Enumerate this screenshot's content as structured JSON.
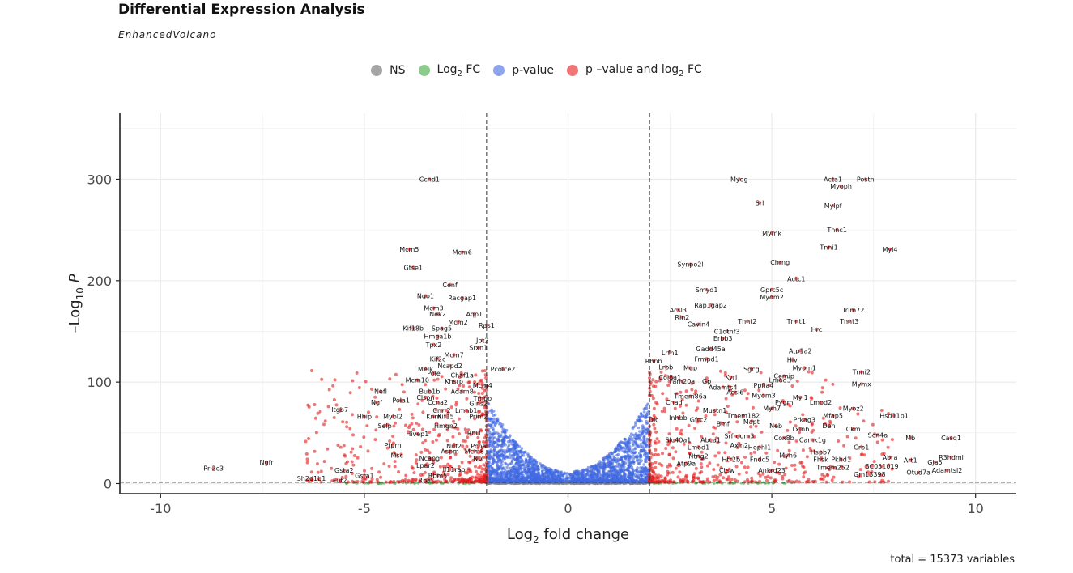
{
  "chart_data": {
    "type": "scatter",
    "title": "Differential Expression Analysis",
    "subtitle": "EnhancedVolcano",
    "xlabel": "Log2 fold change",
    "ylabel": "-Log10 P",
    "xlim": [
      -11,
      11
    ],
    "ylim": [
      -10,
      365
    ],
    "x_ticks": [
      -10,
      -5,
      0,
      5,
      10
    ],
    "y_ticks": [
      0,
      100,
      200,
      300
    ],
    "x_tick_labels": [
      "-10",
      "-5",
      "0",
      "5",
      "10"
    ],
    "y_tick_labels": [
      "0",
      "100",
      "200",
      "300"
    ],
    "fc_cutoff": [
      -2,
      2
    ],
    "p_cutoff_y": 1.3,
    "grid": true,
    "legend_position": "top",
    "caption": "total = 15373 variables",
    "legend": [
      {
        "key": "NS",
        "label": "NS",
        "color": "#808080"
      },
      {
        "key": "FC",
        "label": "Log2 FC",
        "color": "#3da83d"
      },
      {
        "key": "P",
        "label": "p-value",
        "color": "#4169e1"
      },
      {
        "key": "PFC",
        "label": "p –value and log2 FC",
        "color": "#e41a1c"
      }
    ],
    "labeled_genes": [
      {
        "gene": "Myog",
        "x": 4.2,
        "y": 300
      },
      {
        "gene": "Acta1",
        "x": 6.5,
        "y": 300
      },
      {
        "gene": "Postn",
        "x": 7.3,
        "y": 300
      },
      {
        "gene": "Myoph",
        "x": 6.7,
        "y": 293
      },
      {
        "gene": "Srl",
        "x": 4.7,
        "y": 277
      },
      {
        "gene": "Mylpf",
        "x": 6.5,
        "y": 274
      },
      {
        "gene": "Tnnc1",
        "x": 6.6,
        "y": 250
      },
      {
        "gene": "Mymk",
        "x": 5.0,
        "y": 247
      },
      {
        "gene": "Tnni1",
        "x": 6.4,
        "y": 233
      },
      {
        "gene": "Myl4",
        "x": 7.9,
        "y": 231
      },
      {
        "gene": "Chrng",
        "x": 5.2,
        "y": 218
      },
      {
        "gene": "Synpo2l",
        "x": 3.0,
        "y": 216
      },
      {
        "gene": "Actc1",
        "x": 5.6,
        "y": 202
      },
      {
        "gene": "Gprc5c",
        "x": 5.0,
        "y": 191
      },
      {
        "gene": "Smyd1",
        "x": 3.4,
        "y": 191
      },
      {
        "gene": "Myom2",
        "x": 5.0,
        "y": 184
      },
      {
        "gene": "Rap1gap2",
        "x": 3.5,
        "y": 176
      },
      {
        "gene": "Trim72",
        "x": 7.0,
        "y": 171
      },
      {
        "gene": "Acsl3",
        "x": 2.7,
        "y": 171
      },
      {
        "gene": "Rin2",
        "x": 2.8,
        "y": 164
      },
      {
        "gene": "Tnnt2",
        "x": 4.4,
        "y": 160
      },
      {
        "gene": "Tnnt1",
        "x": 5.6,
        "y": 160
      },
      {
        "gene": "Tnnt3",
        "x": 6.9,
        "y": 160
      },
      {
        "gene": "Cavin4",
        "x": 3.2,
        "y": 157
      },
      {
        "gene": "Hrc",
        "x": 6.1,
        "y": 152
      },
      {
        "gene": "C1qtnf3",
        "x": 3.9,
        "y": 150
      },
      {
        "gene": "Erbb3",
        "x": 3.8,
        "y": 143
      },
      {
        "gene": "Gadd45a",
        "x": 3.5,
        "y": 133
      },
      {
        "gene": "Atp1a2",
        "x": 5.7,
        "y": 131
      },
      {
        "gene": "Lrfn1",
        "x": 2.5,
        "y": 129
      },
      {
        "gene": "Hlv",
        "x": 5.5,
        "y": 122
      },
      {
        "gene": "Frmpd1",
        "x": 3.4,
        "y": 123
      },
      {
        "gene": "Rhnb",
        "x": 2.1,
        "y": 121
      },
      {
        "gene": "Myom1",
        "x": 5.8,
        "y": 114
      },
      {
        "gene": "Lrpb",
        "x": 2.4,
        "y": 115
      },
      {
        "gene": "Mgp",
        "x": 3.0,
        "y": 114
      },
      {
        "gene": "Sgcg",
        "x": 4.5,
        "y": 113
      },
      {
        "gene": "Tnni2",
        "x": 7.2,
        "y": 110
      },
      {
        "gene": "Cemip",
        "x": 5.3,
        "y": 106
      },
      {
        "gene": "Kyrl",
        "x": 4.0,
        "y": 105
      },
      {
        "gene": "Col8a1",
        "x": 2.5,
        "y": 105
      },
      {
        "gene": "Lmod3",
        "x": 5.2,
        "y": 102
      },
      {
        "gene": "Fam20a",
        "x": 2.8,
        "y": 101
      },
      {
        "gene": "Gp",
        "x": 3.4,
        "y": 101
      },
      {
        "gene": "Mymx",
        "x": 7.2,
        "y": 98
      },
      {
        "gene": "Ppfia4",
        "x": 4.8,
        "y": 97
      },
      {
        "gene": "Adamts4",
        "x": 3.8,
        "y": 95
      },
      {
        "gene": "Acsl6",
        "x": 4.1,
        "y": 90
      },
      {
        "gene": "Myom3",
        "x": 4.8,
        "y": 87
      },
      {
        "gene": "Tmem86a",
        "x": 3.0,
        "y": 86
      },
      {
        "gene": "Myl1",
        "x": 5.7,
        "y": 85
      },
      {
        "gene": "Pygm",
        "x": 5.3,
        "y": 80
      },
      {
        "gene": "Lmod2",
        "x": 6.2,
        "y": 80
      },
      {
        "gene": "Chad",
        "x": 2.6,
        "y": 80
      },
      {
        "gene": "Myh7",
        "x": 5.0,
        "y": 74
      },
      {
        "gene": "Mustn1",
        "x": 3.6,
        "y": 72
      },
      {
        "gene": "Myoz2",
        "x": 7.0,
        "y": 74
      },
      {
        "gene": "Hsd11b1",
        "x": 8.0,
        "y": 67
      },
      {
        "gene": "Tmem182",
        "x": 4.3,
        "y": 67
      },
      {
        "gene": "Mfap5",
        "x": 6.5,
        "y": 67
      },
      {
        "gene": "Prkag3",
        "x": 5.8,
        "y": 63
      },
      {
        "gene": "Inhbb",
        "x": 2.7,
        "y": 65
      },
      {
        "gene": "Mapt",
        "x": 4.5,
        "y": 61
      },
      {
        "gene": "Dlc",
        "x": 2.1,
        "y": 63
      },
      {
        "gene": "Gfrc2",
        "x": 3.2,
        "y": 63
      },
      {
        "gene": "Bmf",
        "x": 3.8,
        "y": 59
      },
      {
        "gene": "Neb",
        "x": 5.1,
        "y": 57
      },
      {
        "gene": "Den",
        "x": 6.4,
        "y": 57
      },
      {
        "gene": "Txlnb",
        "x": 5.7,
        "y": 54
      },
      {
        "gene": "Ckm",
        "x": 7.0,
        "y": 54
      },
      {
        "gene": "Srfroom3",
        "x": 4.2,
        "y": 47
      },
      {
        "gene": "Scn4a",
        "x": 7.6,
        "y": 48
      },
      {
        "gene": "Mb",
        "x": 8.4,
        "y": 45
      },
      {
        "gene": "Casq1",
        "x": 9.4,
        "y": 45
      },
      {
        "gene": "Cox8b",
        "x": 5.3,
        "y": 45
      },
      {
        "gene": "Camk1g",
        "x": 6.0,
        "y": 43
      },
      {
        "gene": "Slc40a1",
        "x": 2.7,
        "y": 43
      },
      {
        "gene": "Abca1",
        "x": 3.5,
        "y": 43
      },
      {
        "gene": "Axin2",
        "x": 4.2,
        "y": 38
      },
      {
        "gene": "Lmod1",
        "x": 3.2,
        "y": 36
      },
      {
        "gene": "Hephl1",
        "x": 4.7,
        "y": 36
      },
      {
        "gene": "Crb1",
        "x": 7.2,
        "y": 36
      },
      {
        "gene": "Hspb7",
        "x": 6.2,
        "y": 31
      },
      {
        "gene": "Myh6",
        "x": 5.4,
        "y": 28
      },
      {
        "gene": "Abra",
        "x": 7.9,
        "y": 26
      },
      {
        "gene": "R3hdml",
        "x": 9.4,
        "y": 26
      },
      {
        "gene": "Ntng2",
        "x": 3.2,
        "y": 27
      },
      {
        "gene": "Htr2b",
        "x": 4.0,
        "y": 24
      },
      {
        "gene": "Fndc5",
        "x": 4.7,
        "y": 24
      },
      {
        "gene": "Fhsk",
        "x": 6.2,
        "y": 24
      },
      {
        "gene": "Pkhd1",
        "x": 6.7,
        "y": 24
      },
      {
        "gene": "Art1",
        "x": 8.4,
        "y": 23
      },
      {
        "gene": "Gja5",
        "x": 9.0,
        "y": 21
      },
      {
        "gene": "Atp9a",
        "x": 2.9,
        "y": 20
      },
      {
        "gene": "Tmem252",
        "x": 6.5,
        "y": 16
      },
      {
        "gene": "BC051019",
        "x": 7.7,
        "y": 17
      },
      {
        "gene": "Adamtsl2",
        "x": 9.3,
        "y": 13
      },
      {
        "gene": "Ctsw",
        "x": 3.9,
        "y": 13
      },
      {
        "gene": "Ankrd23",
        "x": 5.0,
        "y": 13
      },
      {
        "gene": "Otud7a",
        "x": 8.6,
        "y": 11
      },
      {
        "gene": "Gm13398",
        "x": 7.4,
        "y": 9
      },
      {
        "gene": "Ccnd1",
        "x": -3.4,
        "y": 300
      },
      {
        "gene": "Mcm5",
        "x": -3.9,
        "y": 231
      },
      {
        "gene": "Mcm6",
        "x": -2.6,
        "y": 228
      },
      {
        "gene": "Gtse1",
        "x": -3.8,
        "y": 213
      },
      {
        "gene": "Cenf",
        "x": -2.9,
        "y": 196
      },
      {
        "gene": "Nqo1",
        "x": -3.5,
        "y": 185
      },
      {
        "gene": "Racgap1",
        "x": -2.6,
        "y": 183
      },
      {
        "gene": "Mcm3",
        "x": -3.3,
        "y": 173
      },
      {
        "gene": "Nek2",
        "x": -3.2,
        "y": 167
      },
      {
        "gene": "Aqp1",
        "x": -2.3,
        "y": 167
      },
      {
        "gene": "Mcm2",
        "x": -2.7,
        "y": 159
      },
      {
        "gene": "Rps1",
        "x": -2.0,
        "y": 156
      },
      {
        "gene": "Kif18b",
        "x": -3.8,
        "y": 153
      },
      {
        "gene": "Spag5",
        "x": -3.1,
        "y": 153
      },
      {
        "gene": "Hmga1b",
        "x": -3.2,
        "y": 145
      },
      {
        "gene": "Jpt2",
        "x": -2.1,
        "y": 141
      },
      {
        "gene": "Tpx2",
        "x": -3.3,
        "y": 137
      },
      {
        "gene": "Srxn1",
        "x": -2.2,
        "y": 134
      },
      {
        "gene": "Mcm7",
        "x": -2.8,
        "y": 127
      },
      {
        "gene": "Kif2c",
        "x": -3.2,
        "y": 123
      },
      {
        "gene": "Ncapd2",
        "x": -2.9,
        "y": 116
      },
      {
        "gene": "Pcolce2",
        "x": -1.6,
        "y": 113
      },
      {
        "gene": "Melk",
        "x": -3.5,
        "y": 113
      },
      {
        "gene": "Pole",
        "x": -3.3,
        "y": 109
      },
      {
        "gene": "Chaf1a",
        "x": -2.6,
        "y": 107
      },
      {
        "gene": "Mcm10",
        "x": -3.7,
        "y": 102
      },
      {
        "gene": "Khsrp",
        "x": -2.8,
        "y": 101
      },
      {
        "gene": "Mcm4",
        "x": -2.1,
        "y": 97
      },
      {
        "gene": "Nefl",
        "x": -4.6,
        "y": 91
      },
      {
        "gene": "Bub1b",
        "x": -3.4,
        "y": 91
      },
      {
        "gene": "Adam8",
        "x": -2.6,
        "y": 91
      },
      {
        "gene": "Clspn",
        "x": -3.5,
        "y": 85
      },
      {
        "gene": "Tmpo",
        "x": -2.1,
        "y": 84
      },
      {
        "gene": "Pola1",
        "x": -4.1,
        "y": 82
      },
      {
        "gene": "Ngf",
        "x": -4.7,
        "y": 80
      },
      {
        "gene": "Ccna2",
        "x": -3.2,
        "y": 80
      },
      {
        "gene": "Gins2",
        "x": -2.2,
        "y": 79
      },
      {
        "gene": "Itgb7",
        "x": -5.6,
        "y": 73
      },
      {
        "gene": "Cnrr2",
        "x": -3.1,
        "y": 72
      },
      {
        "gene": "Lmnb1",
        "x": -2.5,
        "y": 72
      },
      {
        "gene": "Hhip",
        "x": -5.0,
        "y": 66
      },
      {
        "gene": "Mybl2",
        "x": -4.3,
        "y": 66
      },
      {
        "gene": "Knrn",
        "x": -3.3,
        "y": 66
      },
      {
        "gene": "Kif15",
        "x": -3.0,
        "y": 66
      },
      {
        "gene": "Prim2",
        "x": -2.2,
        "y": 66
      },
      {
        "gene": "Selp",
        "x": -4.5,
        "y": 57
      },
      {
        "gene": "Hmgn2",
        "x": -3.0,
        "y": 57
      },
      {
        "gene": "Hivep1",
        "x": -3.7,
        "y": 49
      },
      {
        "gene": "Rbl1",
        "x": -2.3,
        "y": 50
      },
      {
        "gene": "Ptprn",
        "x": -4.3,
        "y": 38
      },
      {
        "gene": "Nuf2",
        "x": -2.8,
        "y": 37
      },
      {
        "gene": "Pcna",
        "x": -2.2,
        "y": 37
      },
      {
        "gene": "Aspm",
        "x": -2.9,
        "y": 32
      },
      {
        "gene": "Mcm8",
        "x": -2.3,
        "y": 32
      },
      {
        "gene": "Msc",
        "x": -4.2,
        "y": 28
      },
      {
        "gene": "Ncapg",
        "x": -3.4,
        "y": 25
      },
      {
        "gene": "Npl",
        "x": -2.2,
        "y": 25
      },
      {
        "gene": "Lpar2",
        "x": -3.5,
        "y": 18
      },
      {
        "gene": "Il11rap",
        "x": -2.8,
        "y": 14
      },
      {
        "gene": "Ngfr",
        "x": -7.4,
        "y": 21
      },
      {
        "gene": "Prl2c3",
        "x": -8.7,
        "y": 15
      },
      {
        "gene": "Gsta2",
        "x": -5.5,
        "y": 13
      },
      {
        "gene": "Gsta1",
        "x": -5.0,
        "y": 8
      },
      {
        "gene": "Rbm5",
        "x": -3.2,
        "y": 8
      },
      {
        "gene": "Rpal",
        "x": -3.5,
        "y": 3
      },
      {
        "gene": "Sh2d1b1",
        "x": -6.3,
        "y": 5
      },
      {
        "gene": "Fut2",
        "x": -5.6,
        "y": 3
      }
    ]
  }
}
